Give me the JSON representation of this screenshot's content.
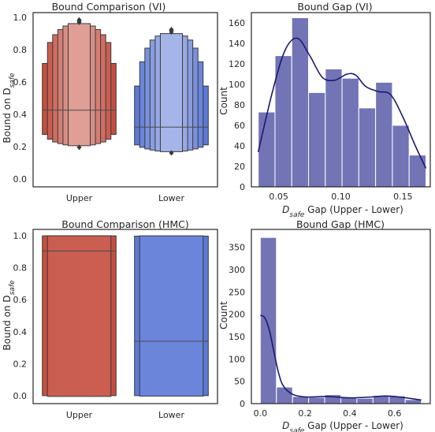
{
  "chart_data": [
    {
      "type": "boxen",
      "title": "Bound Comparison (VI)",
      "xlabel": "",
      "ylabel_main": "Bound on D",
      "ylabel_sub": "safe",
      "ylim": [
        -0.05,
        1.03
      ],
      "yticks": [
        0.0,
        0.2,
        0.4,
        0.6,
        0.8,
        1.0
      ],
      "ytick_labels": [
        "0.0",
        "0.2",
        "0.4",
        "0.6",
        "0.8",
        "1.0"
      ],
      "categories": [
        "Upper",
        "Lower"
      ],
      "colors": [
        "#c44e40",
        "#5c79d6"
      ],
      "series": [
        {
          "median": 0.425,
          "boxes": [
            [
              0.275,
              0.715
            ],
            [
              0.245,
              0.845
            ],
            [
              0.228,
              0.893
            ],
            [
              0.218,
              0.925
            ],
            [
              0.21,
              0.947
            ],
            [
              0.205,
              0.962
            ]
          ],
          "outliers": [
            0.195,
            0.97,
            0.978,
            0.985
          ]
        },
        {
          "median": 0.32,
          "boxes": [
            [
              0.21,
              0.575
            ],
            [
              0.195,
              0.725
            ],
            [
              0.185,
              0.81
            ],
            [
              0.178,
              0.86
            ],
            [
              0.172,
              0.885
            ],
            [
              0.168,
              0.9
            ]
          ],
          "outliers": [
            0.16,
            0.91,
            0.92,
            0.925
          ]
        }
      ]
    },
    {
      "type": "histogram",
      "title": "Bound Gap (VI)",
      "xlabel_main": "D",
      "xlabel_sub": "safe",
      "xlabel_rest": " Gap (Upper - Lower)",
      "ylabel": "Count",
      "xlim": [
        0.028,
        0.172
      ],
      "ylim": [
        0,
        170
      ],
      "xticks": [
        0.05,
        0.1,
        0.15
      ],
      "xtick_labels": [
        "0.05",
        "0.10",
        "0.15"
      ],
      "yticks": [
        0,
        20,
        40,
        60,
        80,
        100,
        120,
        140,
        160
      ],
      "ytick_labels": [
        "0",
        "20",
        "40",
        "60",
        "80",
        "100",
        "120",
        "140",
        "160"
      ],
      "bin_edges": [
        0.0335,
        0.047,
        0.0605,
        0.074,
        0.0875,
        0.101,
        0.1145,
        0.128,
        0.1415,
        0.155,
        0.1685
      ],
      "counts": [
        73,
        128,
        165,
        92,
        115,
        106,
        77,
        102,
        60,
        31
      ],
      "kde_x": [
        0.0335,
        0.045,
        0.055,
        0.065,
        0.075,
        0.085,
        0.095,
        0.105,
        0.112,
        0.12,
        0.13,
        0.14,
        0.15,
        0.16,
        0.1685
      ],
      "kde_y": [
        34,
        93,
        133,
        145,
        128,
        107,
        104,
        110,
        109,
        98,
        93,
        90,
        68,
        40,
        18
      ],
      "bar_color": "#7274b6",
      "kde_color": "#1a1a6e"
    },
    {
      "type": "boxen",
      "title": "Bound Comparison (HMC)",
      "xlabel": "",
      "ylabel_main": "Bound on D",
      "ylabel_sub": "safe",
      "ylim": [
        -0.05,
        1.04
      ],
      "yticks": [
        0.0,
        0.2,
        0.4,
        0.6,
        0.8,
        1.0
      ],
      "ytick_labels": [
        "0.0",
        "0.2",
        "0.4",
        "0.6",
        "0.8",
        "1.0"
      ],
      "categories": [
        "Upper",
        "Lower"
      ],
      "colors": [
        "#c44e40",
        "#5c79d6"
      ],
      "series": [
        {
          "median": 0.905,
          "boxes": [
            [
              0.0,
              1.0
            ],
            [
              -0.005,
              1.0
            ]
          ],
          "outliers": []
        },
        {
          "median": 0.34,
          "boxes": [
            [
              0.0,
              0.998
            ],
            [
              -0.003,
              1.0
            ]
          ],
          "outliers": []
        }
      ]
    },
    {
      "type": "histogram",
      "title": "Bound Gap (HMC)",
      "xlabel_main": "D",
      "xlabel_sub": "safe",
      "xlabel_rest": " Gap (Upper - Lower)",
      "ylabel": "Count",
      "xlim": [
        -0.04,
        0.76
      ],
      "ylim": [
        0,
        390
      ],
      "xticks": [
        0.0,
        0.2,
        0.4,
        0.6
      ],
      "xtick_labels": [
        "0.0",
        "0.2",
        "0.4",
        "0.6"
      ],
      "yticks": [
        0,
        50,
        100,
        150,
        200,
        250,
        300,
        350
      ],
      "ytick_labels": [
        "0",
        "50",
        "100",
        "150",
        "200",
        "250",
        "300",
        "350"
      ],
      "bin_edges": [
        0.0,
        0.072,
        0.144,
        0.216,
        0.288,
        0.36,
        0.432,
        0.504,
        0.576,
        0.648,
        0.72
      ],
      "counts": [
        372,
        37,
        16,
        14,
        20,
        15,
        12,
        18,
        17,
        9
      ],
      "kde_x": [
        0.0,
        0.02,
        0.04,
        0.06,
        0.08,
        0.1,
        0.14,
        0.2,
        0.3,
        0.4,
        0.5,
        0.55,
        0.6,
        0.65,
        0.72
      ],
      "kde_y": [
        198,
        192,
        165,
        118,
        72,
        42,
        22,
        15,
        16,
        13,
        15,
        17,
        16,
        13,
        8
      ],
      "bar_color": "#7274b6",
      "kde_color": "#1a1a6e"
    }
  ]
}
